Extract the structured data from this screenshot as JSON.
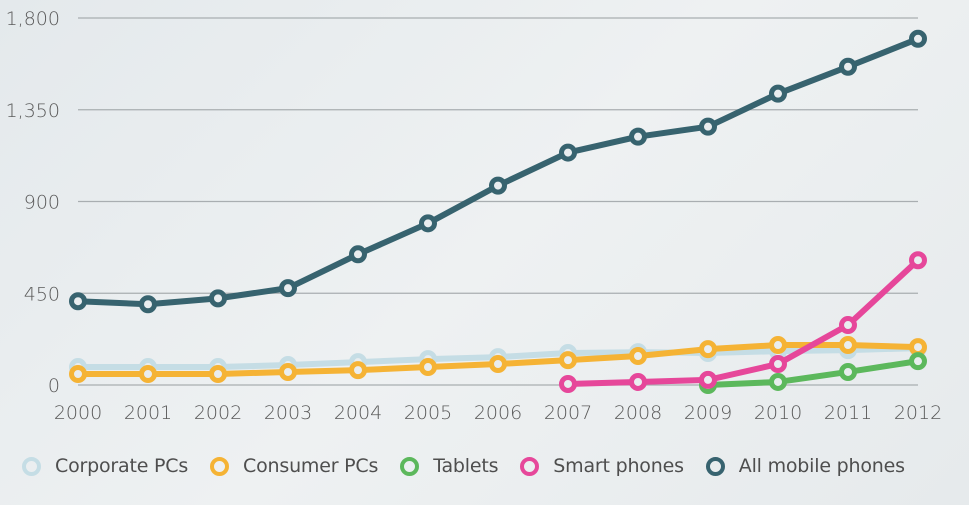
{
  "chart_data": {
    "type": "line",
    "title": "",
    "xlabel": "",
    "ylabel": "",
    "categories": [
      "2000",
      "2001",
      "2002",
      "2003",
      "2004",
      "2005",
      "2006",
      "2007",
      "2008",
      "2009",
      "2010",
      "2011",
      "2012"
    ],
    "ylim": [
      0,
      1800
    ],
    "yticks": [
      0,
      450,
      900,
      1350,
      1800
    ],
    "ytick_labels": [
      "0",
      "450",
      "900",
      "1,350",
      "1,800"
    ],
    "grid": true,
    "legend_position": "bottom",
    "series": [
      {
        "name": "Corporate PCs",
        "color": "#c5dde5",
        "values": [
          88,
          88,
          88,
          98,
          112,
          127,
          137,
          157,
          161,
          157,
          166,
          171,
          181
        ]
      },
      {
        "name": "Consumer PCs",
        "color": "#f5b335",
        "values": [
          54,
          54,
          54,
          64,
          73,
          88,
          103,
          122,
          142,
          176,
          196,
          196,
          186
        ]
      },
      {
        "name": "Tablets",
        "color": "#5cb85c",
        "values": [
          null,
          null,
          null,
          null,
          null,
          null,
          null,
          null,
          null,
          0,
          15,
          64,
          117
        ]
      },
      {
        "name": "Smart phones",
        "color": "#e6479a",
        "values": [
          null,
          null,
          null,
          null,
          null,
          null,
          null,
          5,
          15,
          25,
          103,
          294,
          612
        ]
      },
      {
        "name": "All mobile phones",
        "color": "#37636f",
        "values": [
          411,
          396,
          425,
          475,
          641,
          793,
          978,
          1140,
          1218,
          1267,
          1429,
          1561,
          1698
        ]
      }
    ]
  },
  "legend": [
    {
      "label": "Corporate PCs",
      "color": "#c5dde5"
    },
    {
      "label": "Consumer PCs",
      "color": "#f5b335"
    },
    {
      "label": "Tablets",
      "color": "#5cb85c"
    },
    {
      "label": "Smart phones",
      "color": "#e6479a"
    },
    {
      "label": "All mobile phones",
      "color": "#37636f"
    }
  ]
}
